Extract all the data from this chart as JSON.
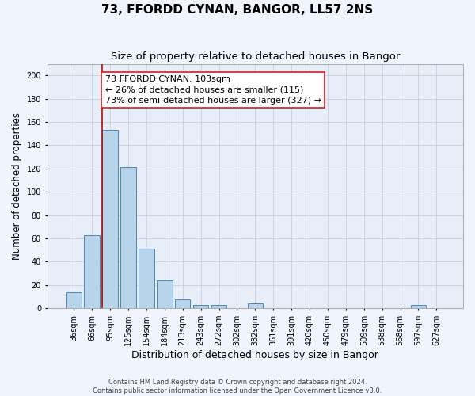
{
  "title": "73, FFORDD CYNAN, BANGOR, LL57 2NS",
  "subtitle": "Size of property relative to detached houses in Bangor",
  "xlabel": "Distribution of detached houses by size in Bangor",
  "ylabel": "Number of detached properties",
  "bar_labels": [
    "36sqm",
    "66sqm",
    "95sqm",
    "125sqm",
    "154sqm",
    "184sqm",
    "213sqm",
    "243sqm",
    "272sqm",
    "302sqm",
    "332sqm",
    "361sqm",
    "391sqm",
    "420sqm",
    "450sqm",
    "479sqm",
    "509sqm",
    "538sqm",
    "568sqm",
    "597sqm",
    "627sqm"
  ],
  "bar_values": [
    14,
    63,
    153,
    121,
    51,
    24,
    8,
    3,
    3,
    0,
    4,
    0,
    0,
    0,
    0,
    0,
    0,
    0,
    0,
    3,
    0
  ],
  "bar_color": "#b8d4ea",
  "bar_edge_color": "#4a86b8",
  "ylim": [
    0,
    210
  ],
  "yticks": [
    0,
    20,
    40,
    60,
    80,
    100,
    120,
    140,
    160,
    180,
    200
  ],
  "annotation_title": "73 FFORDD CYNAN: 103sqm",
  "annotation_line1": "← 26% of detached houses are smaller (115)",
  "annotation_line2": "73% of semi-detached houses are larger (327) →",
  "footer_line1": "Contains HM Land Registry data © Crown copyright and database right 2024.",
  "footer_line2": "Contains public sector information licensed under the Open Government Licence v3.0.",
  "background_color": "#f0f4fc",
  "plot_background_color": "#e8eef8",
  "grid_color": "#c8d0dc",
  "red_line_color": "#aa1111",
  "title_fontsize": 11,
  "subtitle_fontsize": 9.5,
  "xlabel_fontsize": 9,
  "ylabel_fontsize": 8.5,
  "tick_fontsize": 7,
  "annotation_fontsize": 8,
  "footer_fontsize": 6
}
